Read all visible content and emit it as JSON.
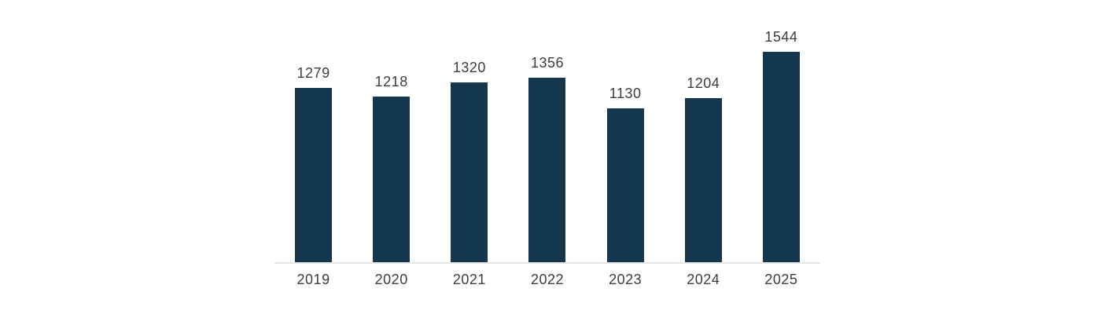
{
  "chart_data": {
    "type": "bar",
    "title": "",
    "xlabel": "",
    "ylabel": "",
    "categories": [
      "2019",
      "2020",
      "2021",
      "2022",
      "2023",
      "2024",
      "2025"
    ],
    "values": [
      1279,
      1218,
      1320,
      1356,
      1130,
      1204,
      1544
    ],
    "ylim": [
      0,
      1925
    ],
    "grid": false,
    "legend": false,
    "data_labels": "above-bars",
    "colors": {
      "bar": "#15384f",
      "value_label": "#3d3d3d",
      "axis_label": "#3d3d3d",
      "axis_line": "#e4e4e4",
      "background": "#ffffff"
    }
  }
}
